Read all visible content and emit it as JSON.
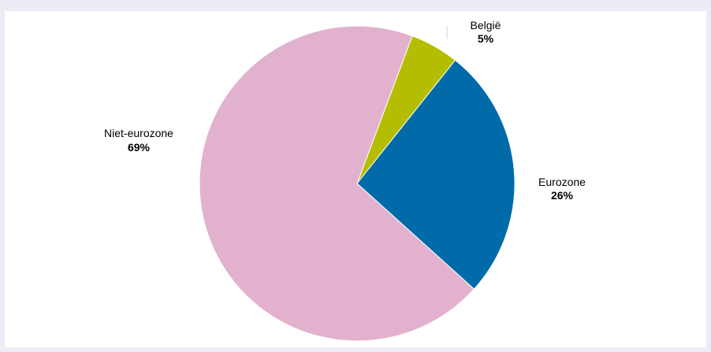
{
  "chart_data": {
    "type": "pie",
    "slices": [
      {
        "label": "België",
        "value": 5,
        "display": "5%",
        "color": "#b5bd00"
      },
      {
        "label": "Eurozone",
        "value": 26,
        "display": "26%",
        "color": "#006ba8"
      },
      {
        "label": "Niet-eurozone",
        "value": 69,
        "display": "69%",
        "color": "#e2b1cd"
      }
    ],
    "start_angle_deg": 20.5,
    "direction": "clockwise",
    "legend": "none",
    "colors": {
      "background": "#ececf5",
      "plot_area": "#ffffff"
    }
  }
}
